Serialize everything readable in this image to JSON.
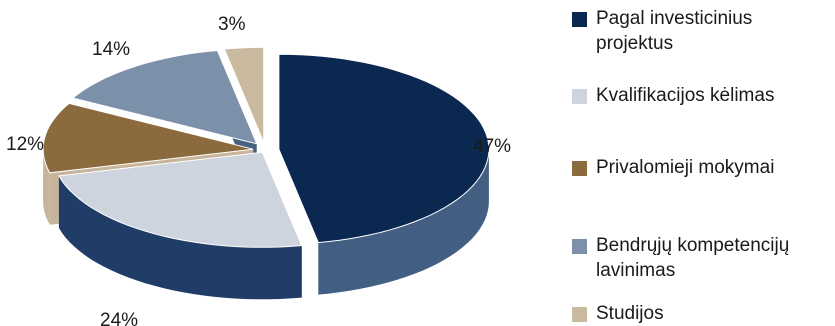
{
  "chart_data": {
    "type": "pie",
    "style": "3d-exploded",
    "slices": [
      {
        "label": "Pagal investicinius projektus",
        "value": 47,
        "display": "47%",
        "color": "#0b2850",
        "side_color": "#425e82"
      },
      {
        "label": "Kvalifikacijos kėlimas",
        "value": 24,
        "display": "24%",
        "color": "#cdd4de",
        "side_color": "#1f3d66"
      },
      {
        "label": "Privalomieji mokymai",
        "value": 12,
        "display": "12%",
        "color": "#8b6b3d",
        "side_color": "#c7b59b"
      },
      {
        "label": "Bendrųjų kompetencijų lavinimas",
        "value": 14,
        "display": "14%",
        "color": "#7d90aa",
        "side_color": "#4a6080"
      },
      {
        "label": "Studijos",
        "value": 3,
        "display": "3%",
        "color": "#c9b99f",
        "side_color": "#a89679"
      }
    ],
    "legend_position": "right"
  }
}
